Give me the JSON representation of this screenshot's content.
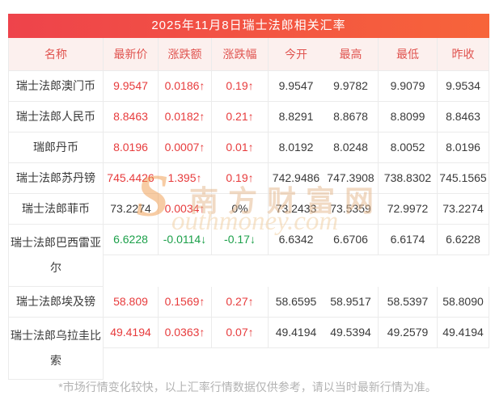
{
  "title": "2025年11月8日瑞士法郎相关汇率",
  "columns": [
    "名称",
    "最新价",
    "涨跌额",
    "涨跌幅",
    "今开",
    "最高",
    "最低",
    "昨收"
  ],
  "rows": [
    {
      "name": "瑞士法郎澳门币",
      "two_line": false,
      "cells": [
        {
          "text": "9.9547",
          "trend": "up"
        },
        {
          "text": "0.0186↑",
          "trend": "up"
        },
        {
          "text": "0.19↑",
          "trend": "up"
        },
        {
          "text": "9.9547",
          "trend": "flat"
        },
        {
          "text": "9.9782",
          "trend": "flat"
        },
        {
          "text": "9.9079",
          "trend": "flat"
        },
        {
          "text": "9.9534",
          "trend": "flat"
        }
      ]
    },
    {
      "name": "瑞士法郎人民币",
      "two_line": false,
      "cells": [
        {
          "text": "8.8463",
          "trend": "up"
        },
        {
          "text": "0.0182↑",
          "trend": "up"
        },
        {
          "text": "0.21↑",
          "trend": "up"
        },
        {
          "text": "8.8291",
          "trend": "flat"
        },
        {
          "text": "8.8678",
          "trend": "flat"
        },
        {
          "text": "8.8099",
          "trend": "flat"
        },
        {
          "text": "8.8463",
          "trend": "flat"
        }
      ]
    },
    {
      "name": "瑞郎丹币",
      "two_line": false,
      "cells": [
        {
          "text": "8.0196",
          "trend": "up"
        },
        {
          "text": "0.0007↑",
          "trend": "up"
        },
        {
          "text": "0.01↑",
          "trend": "up"
        },
        {
          "text": "8.0192",
          "trend": "flat"
        },
        {
          "text": "8.0248",
          "trend": "flat"
        },
        {
          "text": "8.0052",
          "trend": "flat"
        },
        {
          "text": "8.0196",
          "trend": "flat"
        }
      ]
    },
    {
      "name": "瑞士法郎苏丹镑",
      "two_line": false,
      "cells": [
        {
          "text": "745.4426",
          "trend": "up"
        },
        {
          "text": "1.395↑",
          "trend": "up"
        },
        {
          "text": "0.19↑",
          "trend": "up"
        },
        {
          "text": "742.9486",
          "trend": "flat"
        },
        {
          "text": "747.3908",
          "trend": "flat"
        },
        {
          "text": "738.8302",
          "trend": "flat"
        },
        {
          "text": "745.1565",
          "trend": "flat"
        }
      ]
    },
    {
      "name": "瑞士法郎菲币",
      "two_line": false,
      "cells": [
        {
          "text": "73.2274",
          "trend": "flat"
        },
        {
          "text": "0.0034↑",
          "trend": "up"
        },
        {
          "text": "0%",
          "trend": "flat"
        },
        {
          "text": "73.2433",
          "trend": "flat"
        },
        {
          "text": "73.5359",
          "trend": "flat"
        },
        {
          "text": "72.9972",
          "trend": "flat"
        },
        {
          "text": "73.2274",
          "trend": "flat"
        }
      ]
    },
    {
      "name": "瑞士法郎巴西雷亚尔",
      "two_line": true,
      "cells": [
        {
          "text": "6.6228",
          "trend": "down"
        },
        {
          "text": "-0.0114↓",
          "trend": "down"
        },
        {
          "text": "-0.17↓",
          "trend": "down"
        },
        {
          "text": "6.6342",
          "trend": "flat"
        },
        {
          "text": "6.6706",
          "trend": "flat"
        },
        {
          "text": "6.6174",
          "trend": "flat"
        },
        {
          "text": "6.6228",
          "trend": "flat"
        }
      ]
    },
    {
      "name": "瑞士法郎埃及镑",
      "two_line": false,
      "cells": [
        {
          "text": "58.809",
          "trend": "up"
        },
        {
          "text": "0.1569↑",
          "trend": "up"
        },
        {
          "text": "0.27↑",
          "trend": "up"
        },
        {
          "text": "58.6595",
          "trend": "flat"
        },
        {
          "text": "58.9517",
          "trend": "flat"
        },
        {
          "text": "58.5397",
          "trend": "flat"
        },
        {
          "text": "58.8090",
          "trend": "flat"
        }
      ]
    },
    {
      "name": "瑞士法郎乌拉圭比索",
      "two_line": true,
      "cells": [
        {
          "text": "49.4194",
          "trend": "up"
        },
        {
          "text": "0.0363↑",
          "trend": "up"
        },
        {
          "text": "0.07↑",
          "trend": "up"
        },
        {
          "text": "49.4194",
          "trend": "flat"
        },
        {
          "text": "49.5394",
          "trend": "flat"
        },
        {
          "text": "49.2579",
          "trend": "flat"
        },
        {
          "text": "49.4194",
          "trend": "flat"
        }
      ]
    }
  ],
  "watermark": {
    "initial": "S",
    "cn_text": "南方财富网",
    "en_text": "outhmoney.com"
  },
  "footer": "*市场行情变化较快，以上汇率行情数据仅供参考，请以当时最新行情为准。",
  "colors": {
    "up": "#e73b3c",
    "down": "#1ca04a",
    "flat": "#3a3a3a",
    "header_bg": "#fcf0ee",
    "header_text": "#e05450",
    "title_left": "#ee434b",
    "title_right": "#f7643a",
    "border": "#ebebeb",
    "footer_text": "#b2b2b2"
  }
}
